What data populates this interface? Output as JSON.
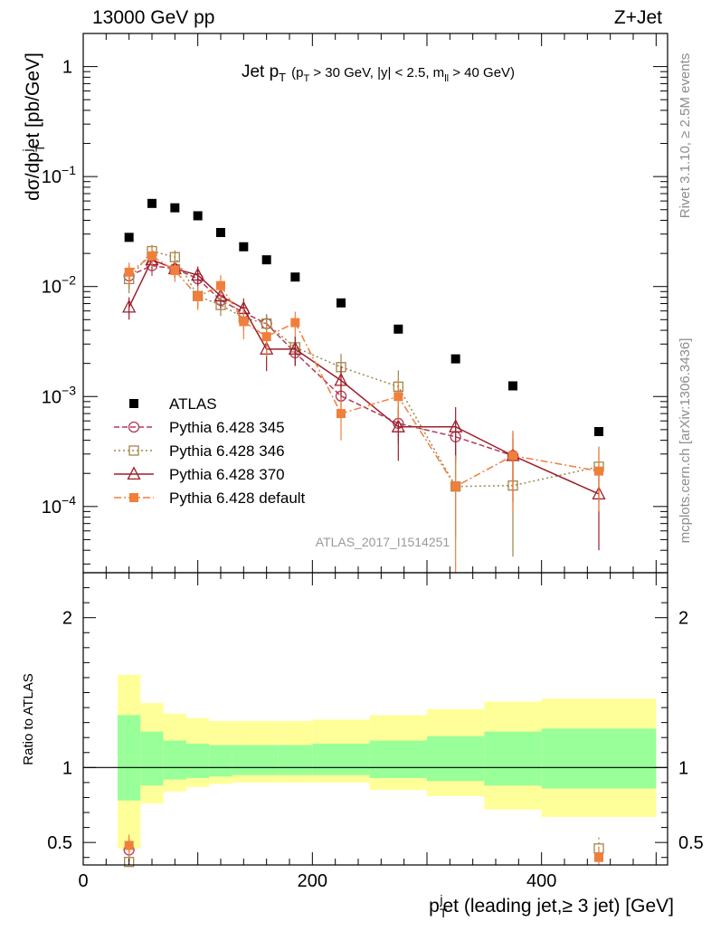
{
  "header": {
    "left": "13000 GeV pp",
    "right": "Z+Jet"
  },
  "side_labels": {
    "rivet": "Rivet 3.1.10, ≥ 2.5M events",
    "mcplots": "mcplots.cern.ch [arXiv:1306.3436]"
  },
  "analysis_id": "ATLAS_2017_I1514251",
  "title": {
    "main": "Jet p",
    "main_sub": "T",
    "cut_prefix": "(p",
    "cut_sub1": "T",
    "cut_mid": " > 30 GeV, |y| < 2.5, m",
    "cut_sub2": "ll",
    "cut_suffix": " > 40 GeV)"
  },
  "y_axis": {
    "label_a": "dσ/dp",
    "label_sub": "T",
    "label_sup": "j",
    "label_b": "et [pb/GeV]"
  },
  "ratio_axis": {
    "label": "Ratio to ATLAS"
  },
  "x_axis": {
    "label_a": "p",
    "label_sub": "T",
    "label_sup": "j",
    "label_b": "et (leading jet,≥ 3 jet) [GeV]"
  },
  "chart_data": {
    "type": "line",
    "x_range": [
      0,
      510
    ],
    "y_range": [
      2.5e-05,
      2.0
    ],
    "y_scale": "log",
    "ratio_range": [
      0.35,
      2.3
    ],
    "x_ticks": [
      0,
      200,
      400
    ],
    "y_ticks": [
      {
        "v": 1,
        "m": "1",
        "e": ""
      },
      {
        "v": 0.1,
        "m": "10",
        "e": "−1"
      },
      {
        "v": 0.01,
        "m": "10",
        "e": "−2"
      },
      {
        "v": 0.001,
        "m": "10",
        "e": "−3"
      },
      {
        "v": 0.0001,
        "m": "10",
        "e": "−4"
      }
    ],
    "ratio_ticks": [
      {
        "v": 0.5,
        "label": "0.5"
      },
      {
        "v": 1,
        "label": "1"
      },
      {
        "v": 2,
        "label": "2"
      }
    ],
    "bins": [
      [
        30,
        50
      ],
      [
        50,
        70
      ],
      [
        70,
        90
      ],
      [
        90,
        110
      ],
      [
        110,
        130
      ],
      [
        130,
        150
      ],
      [
        150,
        170
      ],
      [
        170,
        200
      ],
      [
        200,
        250
      ],
      [
        250,
        300
      ],
      [
        300,
        350
      ],
      [
        350,
        400
      ],
      [
        400,
        500
      ]
    ],
    "ratio_band_green": [
      [
        0.78,
        1.35
      ],
      [
        0.88,
        1.24
      ],
      [
        0.92,
        1.18
      ],
      [
        0.93,
        1.16
      ],
      [
        0.94,
        1.15
      ],
      [
        0.95,
        1.15
      ],
      [
        0.95,
        1.15
      ],
      [
        0.95,
        1.15
      ],
      [
        0.95,
        1.16
      ],
      [
        0.93,
        1.18
      ],
      [
        0.91,
        1.21
      ],
      [
        0.88,
        1.24
      ],
      [
        0.86,
        1.26
      ]
    ],
    "ratio_band_yellow": [
      [
        0.46,
        1.62
      ],
      [
        0.76,
        1.43
      ],
      [
        0.84,
        1.36
      ],
      [
        0.87,
        1.33
      ],
      [
        0.89,
        1.31
      ],
      [
        0.9,
        1.31
      ],
      [
        0.9,
        1.31
      ],
      [
        0.9,
        1.31
      ],
      [
        0.9,
        1.32
      ],
      [
        0.85,
        1.35
      ],
      [
        0.81,
        1.39
      ],
      [
        0.72,
        1.44
      ],
      [
        0.67,
        1.46
      ]
    ],
    "legend_position": "bottom-left",
    "series": [
      {
        "name": "ATLAS",
        "color": "#000000",
        "marker": "filled-square",
        "dash": "",
        "x": [
          40,
          60,
          80,
          100,
          120,
          140,
          160,
          185,
          225,
          275,
          325,
          375,
          450
        ],
        "y": [
          0.028,
          0.057,
          0.052,
          0.044,
          0.031,
          0.023,
          0.0175,
          0.0122,
          0.0071,
          0.0041,
          0.0022,
          0.00125,
          0.00048
        ]
      },
      {
        "name": "Pythia 6.428 345",
        "color": "#b13a5a",
        "marker": "open-circle",
        "dash": "6,3",
        "x": [
          40,
          60,
          80,
          100,
          120,
          140,
          160,
          185,
          225,
          275,
          325,
          375
        ],
        "y": [
          0.0125,
          0.0155,
          0.0145,
          0.0118,
          0.0075,
          0.0058,
          0.0046,
          0.0025,
          0.00101,
          0.00057,
          0.00043,
          0.00029
        ],
        "err": [
          0.003,
          0.003,
          0.0025,
          0.0022,
          0.0015,
          0.0012,
          0.001,
          0.0006,
          0.0003,
          0.0002,
          0.00018,
          0.00012
        ],
        "ratio_x": [
          40
        ],
        "ratio_y": [
          0.45
        ]
      },
      {
        "name": "Pythia 6.428 346",
        "color": "#a0864a",
        "marker": "open-square",
        "dash": "2,3",
        "x": [
          40,
          60,
          80,
          100,
          120,
          140,
          160,
          185,
          225,
          275,
          325,
          375,
          450
        ],
        "y": [
          0.0117,
          0.021,
          0.0185,
          0.0082,
          0.0068,
          0.0052,
          0.0046,
          0.0028,
          0.00185,
          0.00123,
          0.000152,
          0.000155,
          0.00023
        ],
        "err": [
          0.003,
          0.003,
          0.0028,
          0.0018,
          0.0014,
          0.0012,
          0.001,
          0.0008,
          0.0006,
          0.0005,
          0.0001,
          0.00012,
          0.00012
        ],
        "ratio_x": [
          40,
          450
        ],
        "ratio_y": [
          0.37,
          0.46
        ]
      },
      {
        "name": "Pythia 6.428 370",
        "color": "#9c1f2a",
        "marker": "open-triangle",
        "dash": "",
        "x": [
          40,
          60,
          80,
          100,
          120,
          140,
          160,
          185,
          225,
          275,
          325,
          375,
          450
        ],
        "y": [
          0.0065,
          0.0175,
          0.0145,
          0.0127,
          0.0082,
          0.0063,
          0.0027,
          0.0027,
          0.0014,
          0.00053,
          0.00053,
          0.00029,
          0.00013
        ],
        "err": [
          0.0015,
          0.003,
          0.0025,
          0.0025,
          0.0018,
          0.0015,
          0.001,
          0.0008,
          0.0005,
          0.00027,
          0.00027,
          0.00018,
          9e-05
        ]
      },
      {
        "name": "Pythia 6.428 default",
        "color": "#f07f3c",
        "marker": "filled-square",
        "dash": "8,3,2,3",
        "x": [
          40,
          60,
          80,
          100,
          120,
          140,
          160,
          185,
          225,
          275,
          325,
          375,
          450
        ],
        "y": [
          0.0135,
          0.019,
          0.014,
          0.0081,
          0.0102,
          0.0048,
          0.0035,
          0.0047,
          0.0007,
          0.001,
          0.000152,
          0.00029,
          0.00021
        ],
        "err": [
          0.003,
          0.004,
          0.003,
          0.002,
          0.0025,
          0.0015,
          0.0012,
          0.0012,
          0.0003,
          0.0004,
          0.00014,
          0.0002,
          0.00012
        ],
        "ratio_x": [
          40,
          450
        ],
        "ratio_y": [
          0.48,
          0.4
        ]
      }
    ]
  }
}
